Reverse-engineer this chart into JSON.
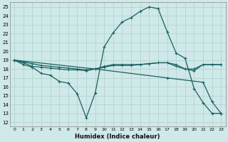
{
  "xlabel": "Humidex (Indice chaleur)",
  "background_color": "#cfe8e8",
  "grid_color": "#afd0d0",
  "line_color": "#1a6060",
  "xlim": [
    -0.5,
    23.5
  ],
  "ylim": [
    11.5,
    25.5
  ],
  "yticks": [
    12,
    13,
    14,
    15,
    16,
    17,
    18,
    19,
    20,
    21,
    22,
    23,
    24,
    25
  ],
  "xticks": [
    0,
    1,
    2,
    3,
    4,
    5,
    6,
    7,
    8,
    9,
    10,
    11,
    12,
    13,
    14,
    15,
    16,
    17,
    18,
    19,
    20,
    21,
    22,
    23
  ],
  "line1_x": [
    0,
    1,
    2,
    3,
    4,
    5,
    6,
    7,
    8,
    9,
    10,
    11,
    12,
    13,
    14,
    15,
    16,
    17,
    18,
    19,
    20,
    21,
    22,
    23
  ],
  "line1_y": [
    19.0,
    18.5,
    18.2,
    17.5,
    17.3,
    16.6,
    16.4,
    15.2,
    12.5,
    15.3,
    20.5,
    22.1,
    23.3,
    23.8,
    24.5,
    25.0,
    24.8,
    22.2,
    19.8,
    19.2,
    15.8,
    14.2,
    13.0,
    13.0
  ],
  "line2_x": [
    0,
    1,
    2,
    3,
    4,
    5,
    6,
    7,
    8,
    9,
    10,
    11,
    12,
    13,
    14,
    15,
    16,
    17,
    18,
    19,
    20,
    21,
    22,
    23
  ],
  "line2_y": [
    19.0,
    18.7,
    18.3,
    18.2,
    18.1,
    18.0,
    17.9,
    17.9,
    17.8,
    18.0,
    18.3,
    18.5,
    18.5,
    18.5,
    18.5,
    18.6,
    18.7,
    18.7,
    18.5,
    18.0,
    17.8,
    18.5,
    18.5,
    18.5
  ],
  "line3_x": [
    0,
    1,
    2,
    3,
    4,
    5,
    6,
    7,
    8,
    9,
    10,
    11,
    12,
    13,
    14,
    15,
    16,
    17,
    18,
    19,
    20,
    21,
    22,
    23
  ],
  "line3_y": [
    19.0,
    18.8,
    18.6,
    18.4,
    18.3,
    18.2,
    18.1,
    18.0,
    17.9,
    18.0,
    18.2,
    18.4,
    18.4,
    18.4,
    18.5,
    18.6,
    18.7,
    18.7,
    18.3,
    18.0,
    18.0,
    18.5,
    18.5,
    18.5
  ],
  "line4_x": [
    0,
    9,
    17,
    21,
    22,
    23
  ],
  "line4_y": [
    19.0,
    18.0,
    17.0,
    16.5,
    14.3,
    13.0
  ]
}
